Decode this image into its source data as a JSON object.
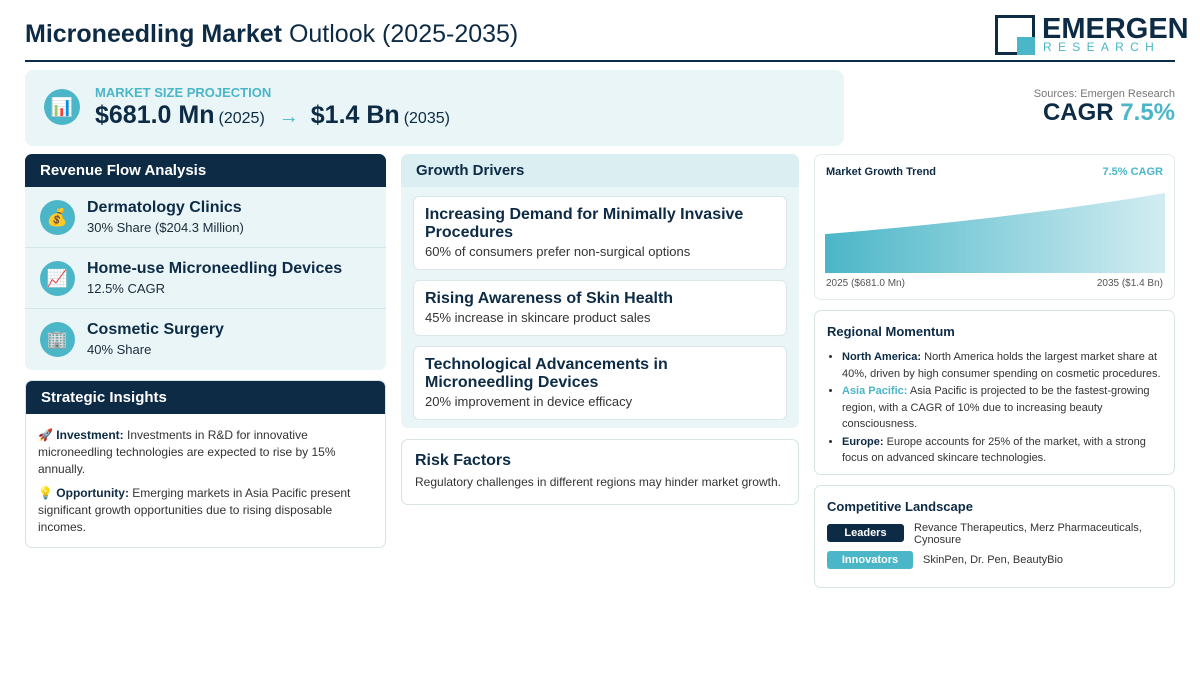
{
  "header": {
    "title_bold": "Microneedling Market",
    "title_rest": "Outlook (2025-2035)",
    "logo_name": "EMERGEN",
    "logo_sub": "RESEARCH"
  },
  "projection": {
    "icon": "bar-chart-icon",
    "label": "MARKET SIZE PROJECTION",
    "start_value": "$681.0 Mn",
    "start_year": "(2025)",
    "arrow": "→",
    "end_value": "$1.4 Bn",
    "end_year": "(2035)"
  },
  "sources": "Sources: Emergen Research",
  "cagr": {
    "label": "CAGR",
    "value": "7.5%"
  },
  "revenue": {
    "title": "Revenue Flow Analysis",
    "items": [
      {
        "icon": "money-bag-icon",
        "glyph": "💰",
        "title": "Dermatology Clinics",
        "sub": "30% Share ($204.3 Million)"
      },
      {
        "icon": "trend-chart-icon",
        "glyph": "📈",
        "title": "Home-use Microneedling Devices",
        "sub": "12.5% CAGR"
      },
      {
        "icon": "building-icon",
        "glyph": "🏢",
        "title": "Cosmetic Surgery",
        "sub": "40% Share"
      }
    ]
  },
  "insights": {
    "title": "Strategic Insights",
    "items": [
      {
        "icon": "rocket-icon",
        "glyph": "🚀",
        "label": "Investment:",
        "text": "Investments in R&D for innovative microneedling technologies are expected to rise by 15% annually."
      },
      {
        "icon": "lightbulb-icon",
        "glyph": "💡",
        "label": "Opportunity:",
        "text": "Emerging markets in Asia Pacific present significant growth opportunities due to rising disposable incomes."
      }
    ]
  },
  "drivers": {
    "title": "Growth Drivers",
    "items": [
      {
        "title": "Increasing Demand for Minimally Invasive Procedures",
        "sub": "60% of consumers prefer non-surgical options"
      },
      {
        "title": "Rising Awareness of Skin Health",
        "sub": "45% increase in skincare product sales"
      },
      {
        "title": "Technological Advancements in Microneedling Devices",
        "sub": "20% improvement in device efficacy"
      }
    ]
  },
  "risk": {
    "title": "Risk Factors",
    "text": "Regulatory challenges in different regions may hinder market growth."
  },
  "trend": {
    "title": "Market Growth Trend",
    "cagr": "7.5% CAGR",
    "start_label": "2025 ($681.0 Mn)",
    "end_label": "2035 ($1.4 Bn)"
  },
  "chart_data": {
    "type": "area",
    "x": [
      2025,
      2035
    ],
    "values": [
      681.0,
      1400
    ],
    "unit": "Mn",
    "title": "Market Growth Trend"
  },
  "regional": {
    "title": "Regional Momentum",
    "items": [
      {
        "name": "North America:",
        "text": "North America holds the largest market share at 40%, driven by high consumer spending on cosmetic procedures.",
        "accent": false
      },
      {
        "name": "Asia Pacific:",
        "text": "Asia Pacific is projected to be the fastest-growing region, with a CAGR of 10% due to increasing beauty consciousness.",
        "accent": true
      },
      {
        "name": "Europe:",
        "text": "Europe accounts for 25% of the market, with a strong focus on advanced skincare technologies.",
        "accent": false
      }
    ]
  },
  "competitive": {
    "title": "Competitive Landscape",
    "leaders_label": "Leaders",
    "leaders": "Revance Therapeutics, Merz Pharmaceuticals, Cynosure",
    "innovators_label": "Innovators",
    "innovators": "SkinPen, Dr. Pen, BeautyBio"
  },
  "colors": {
    "primary": "#0d2b45",
    "accent": "#4bb6c8",
    "panel_bg": "#eaf5f7"
  }
}
